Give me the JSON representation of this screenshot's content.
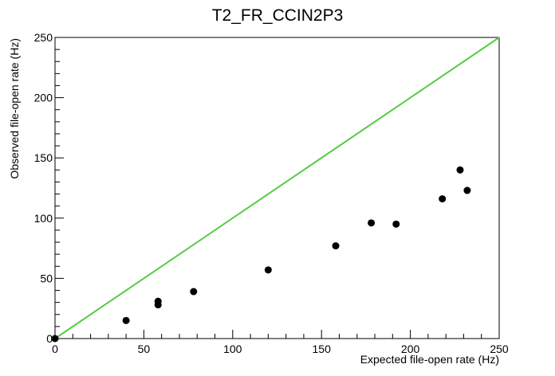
{
  "chart_data": {
    "type": "scatter",
    "title": "T2_FR_CCIN2P3",
    "xlabel": "Expected file-open rate (Hz)",
    "ylabel": "Observed file-open rate (Hz)",
    "xlim": [
      0,
      250
    ],
    "ylim": [
      0,
      250
    ],
    "x_ticks": [
      0,
      50,
      100,
      150,
      200,
      250
    ],
    "y_ticks": [
      0,
      50,
      100,
      150,
      200,
      250
    ],
    "grid": false,
    "series": [
      {
        "color": "#000000",
        "points": [
          {
            "x": 0,
            "y": 0
          },
          {
            "x": 40,
            "y": 15
          },
          {
            "x": 58,
            "y": 28
          },
          {
            "x": 58,
            "y": 31
          },
          {
            "x": 78,
            "y": 39
          },
          {
            "x": 120,
            "y": 57
          },
          {
            "x": 158,
            "y": 77
          },
          {
            "x": 178,
            "y": 96
          },
          {
            "x": 192,
            "y": 95
          },
          {
            "x": 218,
            "y": 116
          },
          {
            "x": 228,
            "y": 140
          },
          {
            "x": 232,
            "y": 123
          }
        ]
      }
    ],
    "reference_line": {
      "color": "#55cc44",
      "from": {
        "x": 0,
        "y": 0
      },
      "to": {
        "x": 250,
        "y": 250
      }
    }
  }
}
